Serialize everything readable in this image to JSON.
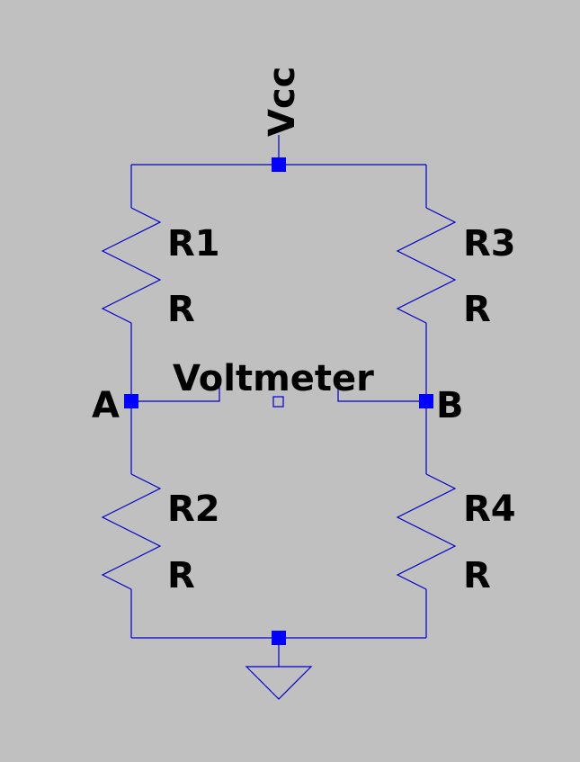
{
  "colors": {
    "background": "#c0c0c0",
    "wire": "#0000cd",
    "junction": "#0000ff",
    "text": "#000000"
  },
  "labels": {
    "supply": "Vcc",
    "meter": "Voltmeter",
    "node_a": "A",
    "node_b": "B"
  },
  "components": [
    {
      "id": "R1",
      "name": "R1",
      "value": "R"
    },
    {
      "id": "R2",
      "name": "R2",
      "value": "R"
    },
    {
      "id": "R3",
      "name": "R3",
      "value": "R"
    },
    {
      "id": "R4",
      "name": "R4",
      "value": "R"
    }
  ]
}
